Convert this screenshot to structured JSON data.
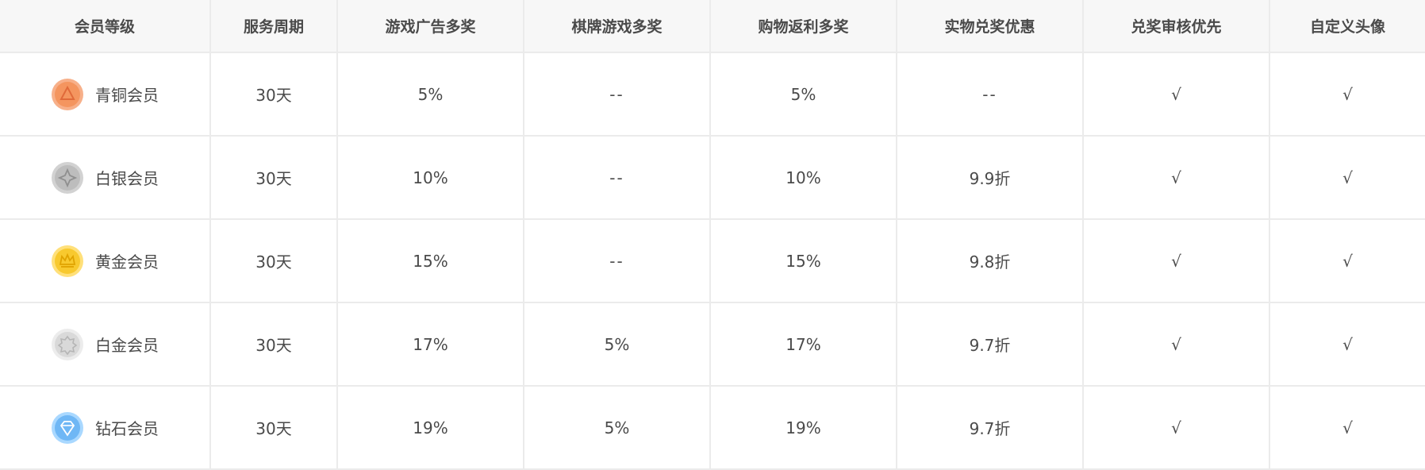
{
  "headers": [
    "会员等级",
    "服务周期",
    "游戏广告多奖",
    "棋牌游戏多奖",
    "购物返利多奖",
    "实物兑奖优惠",
    "兑奖审核优先",
    "自定义头像"
  ],
  "rows": [
    {
      "level": "青铜会员",
      "icon": "bronze-medal-icon",
      "colors": {
        "outer": "#f7b08a",
        "inner": "#f4955f",
        "symbol": "#e06a3a"
      },
      "cells": [
        "30天",
        "5%",
        "--",
        "5%",
        "--",
        "√",
        "√"
      ]
    },
    {
      "level": "白银会员",
      "icon": "silver-medal-icon",
      "colors": {
        "outer": "#d2d2d2",
        "inner": "#bdbdbd",
        "symbol": "#8f8f8f"
      },
      "cells": [
        "30天",
        "10%",
        "--",
        "10%",
        "9.9折",
        "√",
        "√"
      ]
    },
    {
      "level": "黄金会员",
      "icon": "gold-medal-icon",
      "colors": {
        "outer": "#ffe07a",
        "inner": "#f8c92e",
        "symbol": "#e0a300"
      },
      "cells": [
        "30天",
        "15%",
        "--",
        "15%",
        "9.8折",
        "√",
        "√"
      ]
    },
    {
      "level": "白金会员",
      "icon": "platinum-medal-icon",
      "colors": {
        "outer": "#ececec",
        "inner": "#d9d9d9",
        "symbol": "#b5b5b5"
      },
      "cells": [
        "30天",
        "17%",
        "5%",
        "17%",
        "9.7折",
        "√",
        "√"
      ]
    },
    {
      "level": "钻石会员",
      "icon": "diamond-medal-icon",
      "colors": {
        "outer": "#a9d8ff",
        "inner": "#6fb7f5",
        "symbol": "#3a8fe0"
      },
      "cells": [
        "30天",
        "19%",
        "5%",
        "19%",
        "9.7折",
        "√",
        "√"
      ]
    }
  ]
}
